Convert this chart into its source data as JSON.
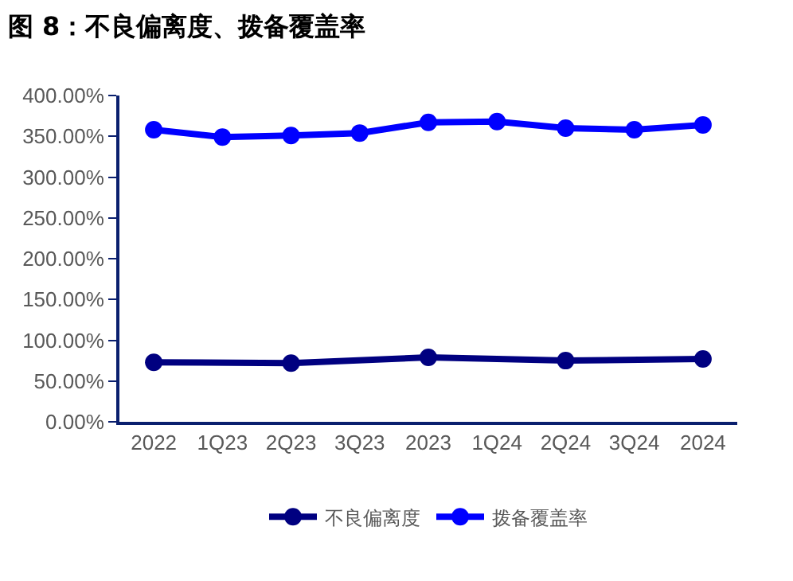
{
  "chart_data": {
    "type": "line",
    "title": "图 8：不良偏离度、拨备覆盖率",
    "categories": [
      "2022",
      "1Q23",
      "2Q23",
      "3Q23",
      "2023",
      "1Q24",
      "2Q24",
      "3Q24",
      "2024"
    ],
    "series": [
      {
        "name": "不良偏离度",
        "color": "#000080",
        "values": [
          73,
          null,
          72,
          null,
          79,
          null,
          75,
          null,
          77
        ]
      },
      {
        "name": "拨备覆盖率",
        "color": "#0000ff",
        "values": [
          358,
          349,
          351,
          354,
          367,
          368,
          360,
          358,
          364
        ]
      }
    ],
    "ylim": [
      0,
      400
    ],
    "yticks": [
      {
        "value": 0,
        "label": "0.00%"
      },
      {
        "value": 50,
        "label": "50.00%"
      },
      {
        "value": 100,
        "label": "100.00%"
      },
      {
        "value": 150,
        "label": "150.00%"
      },
      {
        "value": 200,
        "label": "200.00%"
      },
      {
        "value": 250,
        "label": "250.00%"
      },
      {
        "value": 300,
        "label": "300.00%"
      },
      {
        "value": 350,
        "label": "350.00%"
      },
      {
        "value": 400,
        "label": "400.00%"
      }
    ],
    "legend": "bottom",
    "marker": "circle",
    "line_style": "solid"
  }
}
